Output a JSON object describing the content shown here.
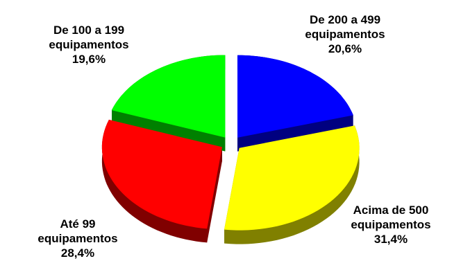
{
  "chart_data": {
    "type": "pie",
    "categories": [
      "De 200 a 499 equipamentos",
      "Acima de 500 equipamentos",
      "Até 99 equipamentos",
      "De 100 a 199 equipamentos"
    ],
    "values": [
      20.6,
      31.4,
      28.4,
      19.6
    ],
    "value_labels": [
      "20,6%",
      "31,4%",
      "28,4%",
      "19,6%"
    ],
    "colors": [
      "#0000ff",
      "#ffff00",
      "#ff0000",
      "#00ff00"
    ]
  }
}
